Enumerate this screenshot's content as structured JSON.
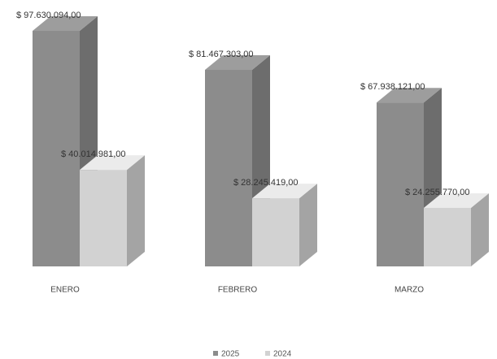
{
  "chart_data": {
    "type": "bar3d",
    "categories": [
      "ENERO",
      "FEBRERO",
      "MARZO"
    ],
    "series": [
      {
        "name": "2025",
        "color": "#8c8c8c",
        "values": [
          97630094,
          81467303,
          67938121
        ],
        "value_labels": [
          "$ 97.630.094,00",
          "$ 81.467.303,00",
          "$ 67.938.121,00"
        ]
      },
      {
        "name": "2024",
        "color": "#d2d2d2",
        "values": [
          40014981,
          28245419,
          24255770
        ],
        "value_labels": [
          "$ 40.014.981,00",
          "$ 28.245.419,00",
          "$ 24.255.770,00"
        ]
      }
    ]
  }
}
